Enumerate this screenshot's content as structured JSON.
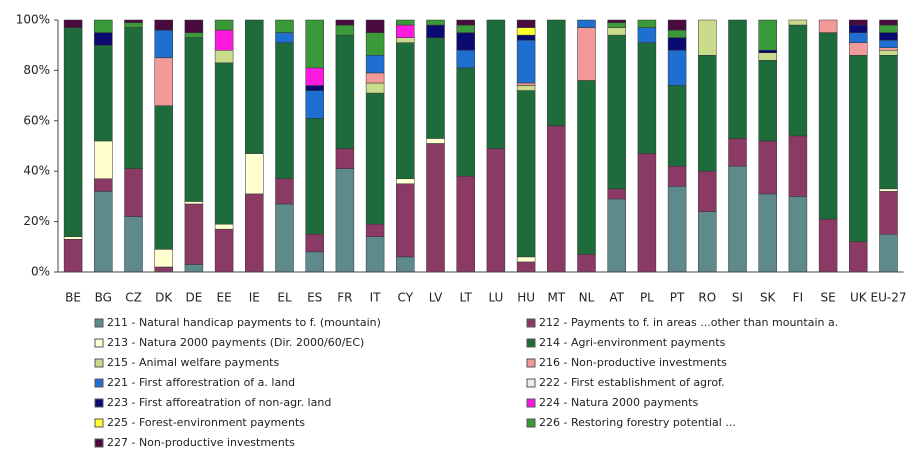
{
  "chart_data": {
    "type": "stacked_bar",
    "categories": [
      "BE",
      "BG",
      "CZ",
      "DK",
      "DE",
      "EE",
      "IE",
      "EL",
      "ES",
      "FR",
      "IT",
      "CY",
      "LV",
      "LT",
      "LU",
      "HU",
      "MT",
      "NL",
      "AT",
      "PL",
      "PT",
      "RO",
      "SI",
      "SK",
      "FI",
      "SE",
      "UK",
      "EU-27"
    ],
    "ylim": [
      0,
      100
    ],
    "yticks": [
      {
        "value": 0,
        "label": "0%"
      },
      {
        "value": 20,
        "label": "20%"
      },
      {
        "value": 40,
        "label": "40%"
      },
      {
        "value": 60,
        "label": "60%"
      },
      {
        "value": 80,
        "label": "80%"
      },
      {
        "value": 100,
        "label": "100%"
      }
    ],
    "series": [
      {
        "name": "211 - Natural handicap payments to f. (mountain)",
        "color": "#5f8a8c",
        "values": [
          0,
          32,
          22,
          0,
          3,
          0,
          0,
          27,
          8,
          41,
          14,
          6,
          0,
          0,
          0,
          0,
          0,
          0,
          29,
          0,
          34,
          24,
          42,
          31,
          30,
          0,
          0,
          15
        ]
      },
      {
        "name": "212 - Payments to f. in areas ...other than mountain a.",
        "color": "#8b3a66",
        "values": [
          13,
          5,
          19,
          2,
          24,
          17,
          31,
          10,
          7,
          8,
          5,
          29,
          51,
          38,
          49,
          4,
          58,
          7,
          4,
          47,
          8,
          16,
          11,
          21,
          24,
          21,
          12,
          17
        ]
      },
      {
        "name": "213 - Natura 2000 payments (Dir. 2000/60/EC)",
        "color": "#ffffd0",
        "values": [
          1,
          15,
          0,
          7,
          1,
          2,
          16,
          0,
          0,
          0,
          0,
          2,
          2,
          0,
          0,
          2,
          0,
          0,
          0,
          0,
          0,
          0,
          0,
          0,
          0,
          0,
          0,
          1
        ]
      },
      {
        "name": "214 - Agri-environment payments",
        "color": "#1e6b3c",
        "values": [
          83,
          38,
          56,
          57,
          65,
          64,
          53,
          54,
          46,
          45,
          52,
          54,
          40,
          43,
          51,
          66,
          42,
          69,
          61,
          44,
          32,
          46,
          47,
          32,
          44,
          74,
          74,
          53
        ]
      },
      {
        "name": "215 - Animal welfare payments",
        "color": "#c8dc8c",
        "values": [
          0,
          0,
          0,
          0,
          0,
          5,
          0,
          0,
          0,
          0,
          4,
          2,
          0,
          0,
          0,
          2,
          0,
          0,
          3,
          0,
          0,
          14,
          0,
          3,
          2,
          0,
          0,
          2
        ]
      },
      {
        "name": "216 - Non-productive investments",
        "color": "#f29a9a",
        "values": [
          0,
          0,
          0,
          19,
          0,
          0,
          0,
          0,
          0,
          0,
          4,
          0,
          0,
          0,
          0,
          1,
          0,
          21,
          0,
          0,
          0,
          0,
          0,
          0,
          0,
          5,
          5,
          1
        ]
      },
      {
        "name": "221 - First afforestration of a. land",
        "color": "#1f6fd0",
        "values": [
          0,
          0,
          0,
          11,
          0,
          0,
          0,
          4,
          11,
          0,
          7,
          0,
          0,
          7,
          0,
          17,
          0,
          3,
          0,
          6,
          14,
          0,
          0,
          0,
          0,
          0,
          4,
          3
        ]
      },
      {
        "name": "222 - First establishment of agrof.",
        "color": "#e8f0f0",
        "values": [
          0,
          0,
          0,
          0,
          0,
          0,
          0,
          0,
          0,
          0,
          0,
          0,
          0,
          0,
          0,
          0,
          0,
          0,
          0,
          0,
          0,
          0,
          0,
          0,
          0,
          0,
          0,
          0
        ]
      },
      {
        "name": "223 - First afforeatration of non-agr. land",
        "color": "#0a0a70",
        "values": [
          0,
          5,
          0,
          0,
          0,
          0,
          0,
          0,
          2,
          0,
          0,
          0,
          5,
          7,
          0,
          2,
          0,
          0,
          0,
          0,
          5,
          0,
          0,
          1,
          0,
          0,
          3,
          3
        ]
      },
      {
        "name": "224 - Natura 2000 payments",
        "color": "#ff1ae0",
        "values": [
          0,
          0,
          0,
          0,
          0,
          8,
          0,
          0,
          7,
          0,
          0,
          5,
          0,
          0,
          0,
          0,
          0,
          0,
          0,
          0,
          0,
          0,
          0,
          0,
          0,
          0,
          0,
          0
        ]
      },
      {
        "name": "225 - Forest-environment payments",
        "color": "#ffff30",
        "values": [
          0,
          0,
          0,
          0,
          0,
          0,
          0,
          0,
          0,
          0,
          0,
          0,
          0,
          0,
          0,
          3,
          0,
          0,
          0,
          0,
          0,
          0,
          0,
          0,
          0,
          0,
          0,
          0
        ]
      },
      {
        "name": "226 - Restoring forestry potential ...",
        "color": "#3a9a3a",
        "values": [
          0,
          5,
          2,
          0,
          2,
          4,
          0,
          5,
          19,
          4,
          9,
          2,
          2,
          3,
          0,
          0,
          0,
          0,
          2,
          3,
          3,
          0,
          0,
          12,
          0,
          0,
          0,
          3
        ]
      },
      {
        "name": "227 - Non-productive investments",
        "color": "#4a0a40",
        "values": [
          3,
          0,
          1,
          4,
          5,
          0,
          0,
          0,
          0,
          2,
          5,
          0,
          0,
          2,
          0,
          3,
          0,
          0,
          1,
          0,
          4,
          0,
          0,
          0,
          0,
          0,
          2,
          2
        ]
      }
    ]
  }
}
